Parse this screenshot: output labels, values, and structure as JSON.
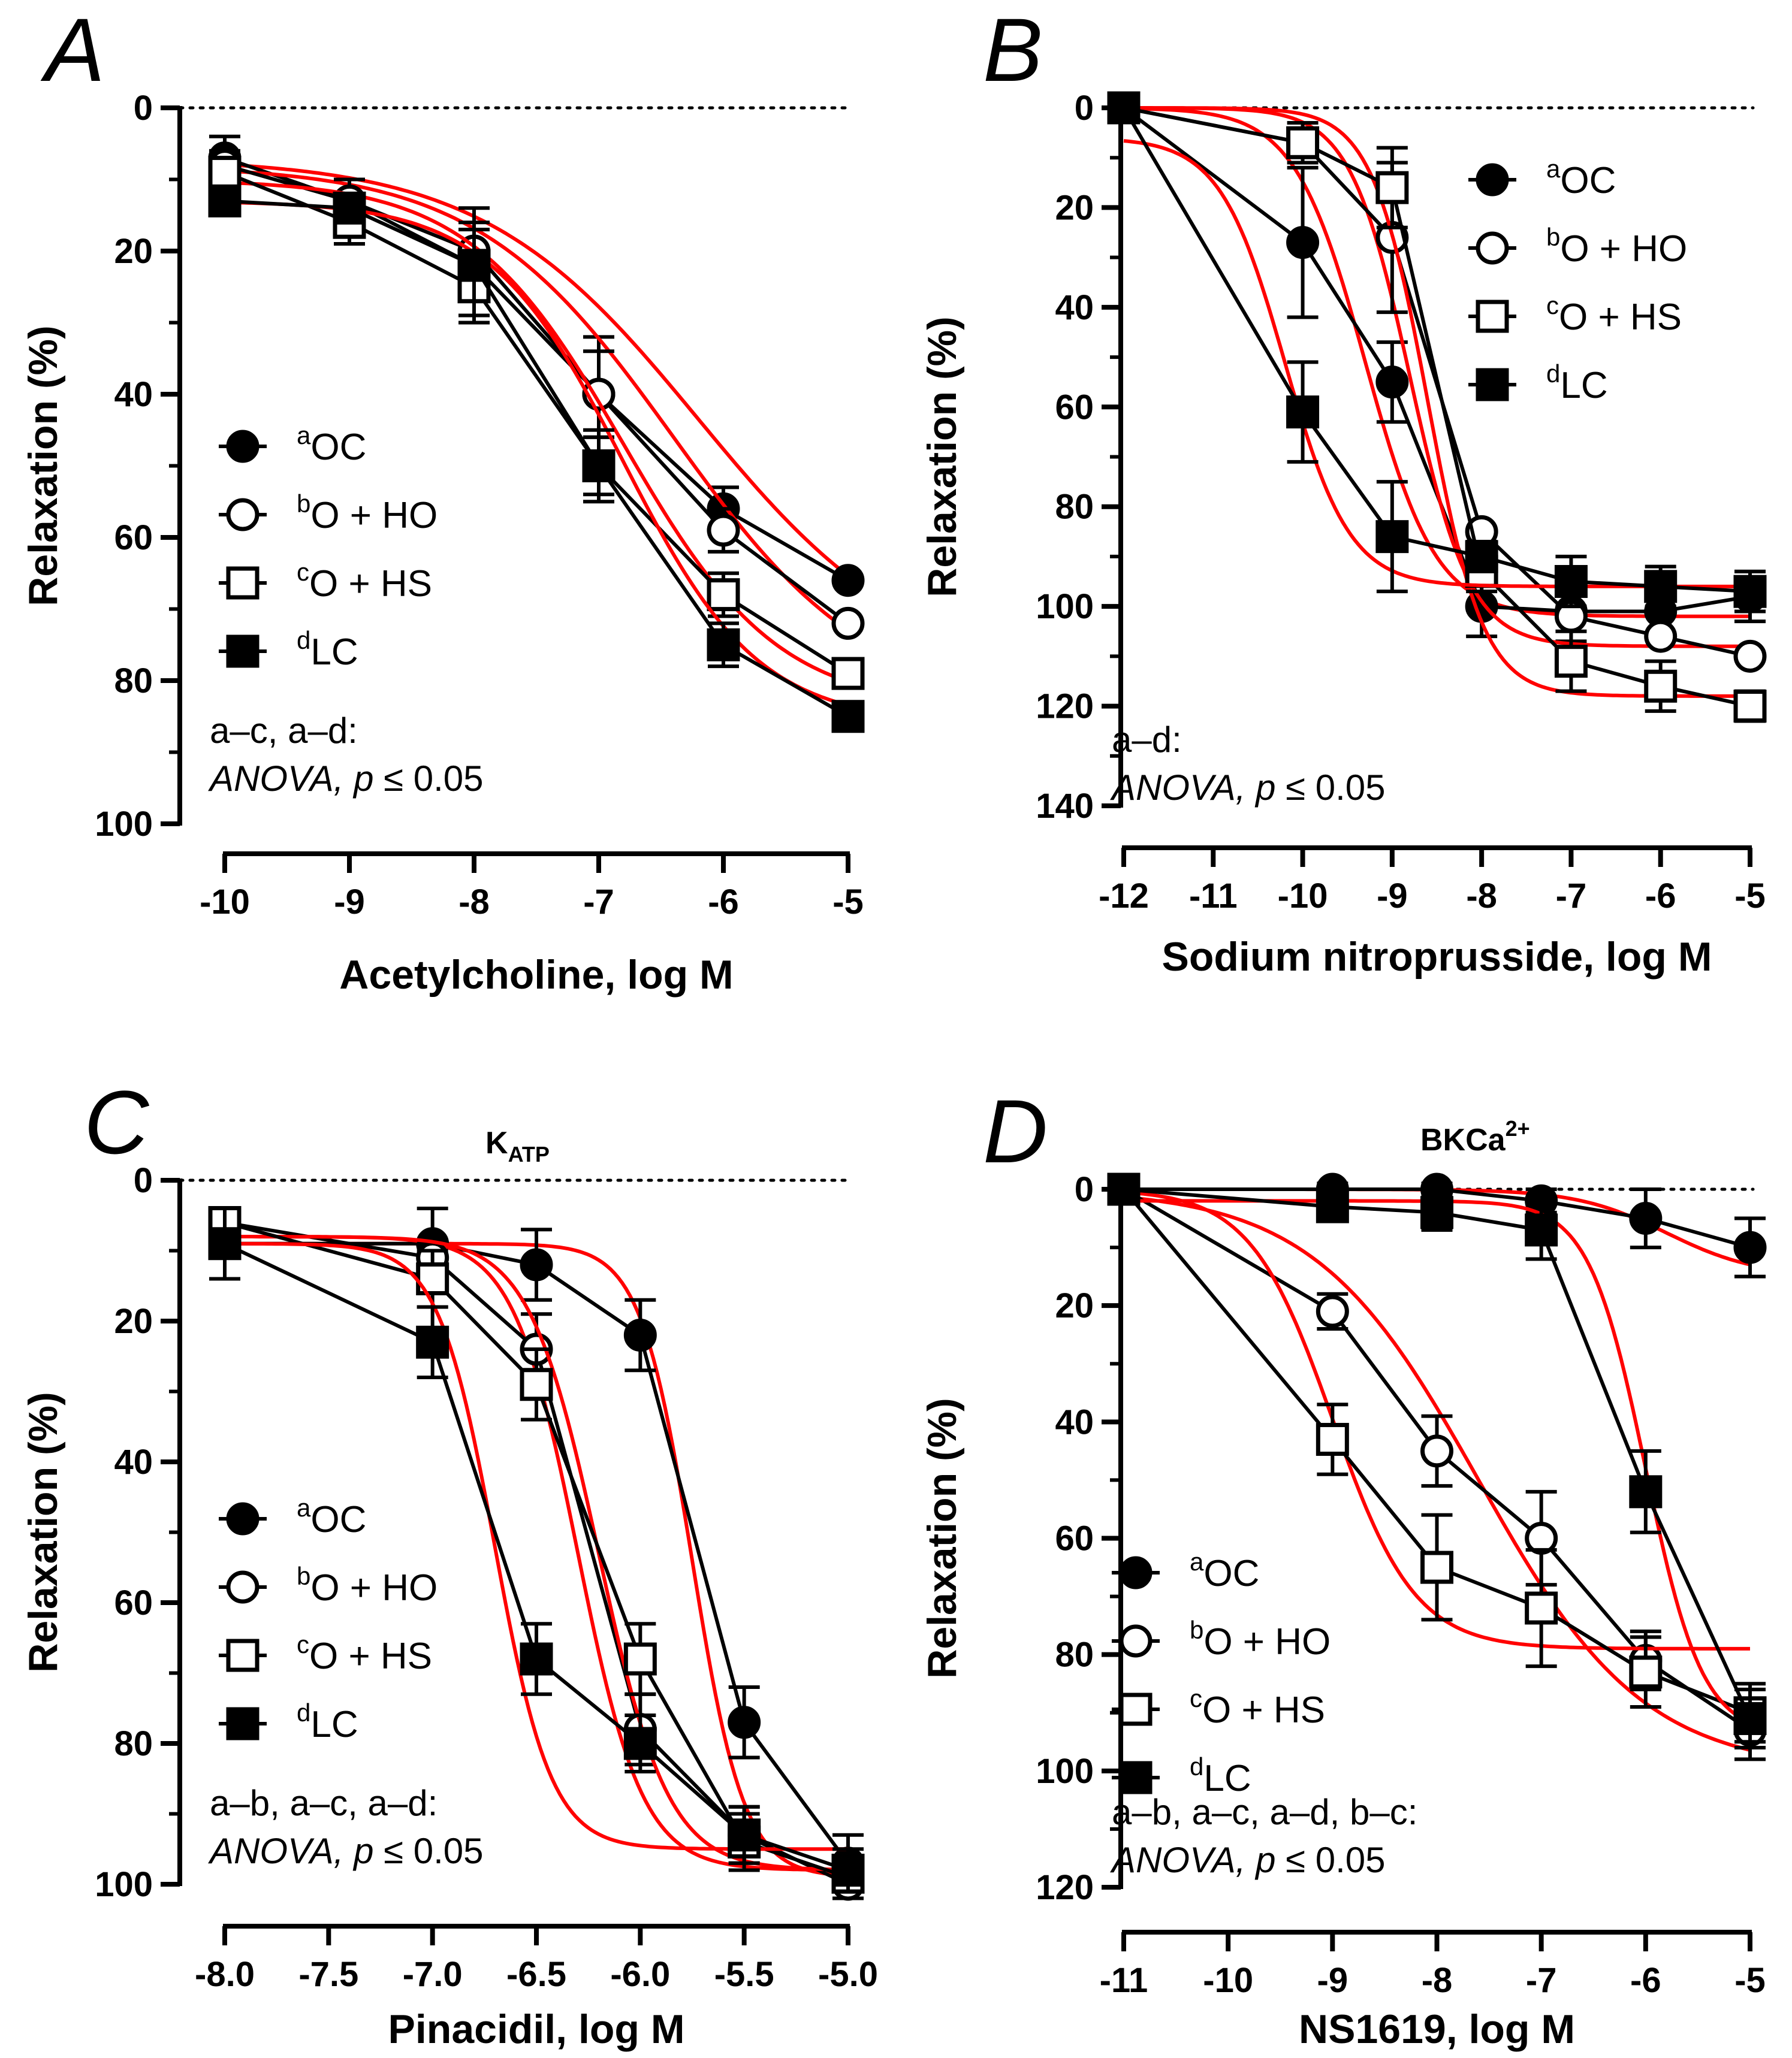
{
  "chart_data": [
    {
      "panel": "A",
      "type": "line",
      "title": "",
      "xlabel": "Acetylcholine, log M",
      "ylabel": "Relaxation (%)",
      "xlim": [
        -10,
        -5
      ],
      "ylim": [
        0,
        100
      ],
      "y_inverted": true,
      "xticks": [
        "-10",
        "-9",
        "-8",
        "-7",
        "-6",
        "-5"
      ],
      "yticks": [
        "0",
        "20",
        "40",
        "60",
        "80",
        "100"
      ],
      "x": [
        -10,
        -9,
        -8,
        -7,
        -6,
        -5
      ],
      "series": [
        {
          "name": "OC",
          "sup": "a",
          "marker": "filled-circle",
          "values": [
            7,
            13,
            22,
            40,
            56,
            66
          ],
          "errors": [
            3,
            3,
            8,
            8,
            3,
            0
          ],
          "fit": {
            "top": 7,
            "bottom": 80,
            "ec50": -6.2,
            "hill": 0.5
          }
        },
        {
          "name": "O + HO",
          "sup": "b",
          "marker": "open-circle",
          "values": [
            8,
            13,
            20,
            40,
            59,
            72
          ],
          "errors": [
            2,
            3,
            4,
            6,
            3,
            0
          ],
          "fit": {
            "top": 8,
            "bottom": 84,
            "ec50": -6.4,
            "hill": 0.55
          }
        },
        {
          "name": "O + HS",
          "sup": "c",
          "marker": "open-square",
          "values": [
            9,
            16,
            25,
            50,
            68,
            79
          ],
          "errors": [
            2,
            3,
            4,
            4,
            3,
            0
          ],
          "fit": {
            "top": 10,
            "bottom": 84,
            "ec50": -6.8,
            "hill": 0.7
          }
        },
        {
          "name": "LC",
          "sup": "d",
          "marker": "filled-square",
          "values": [
            13,
            14,
            22,
            50,
            75,
            85
          ],
          "errors": [
            2,
            2,
            5,
            5,
            3,
            0
          ],
          "fit": {
            "top": 13,
            "bottom": 86,
            "ec50": -6.8,
            "hill": 0.8
          }
        }
      ],
      "legend": "center-left",
      "stat_label": "a–c, a–d:",
      "stat_test": "ANOVA,",
      "stat_p": "p",
      "stat_value": "≤ 0.05",
      "channel": ""
    },
    {
      "panel": "B",
      "type": "line",
      "title": "",
      "xlabel": "Sodium nitroprusside, log M",
      "ylabel": "Relaxation (%)",
      "xlim": [
        -12,
        -5
      ],
      "ylim": [
        0,
        140
      ],
      "y_inverted": true,
      "xticks": [
        "-12",
        "-11",
        "-10",
        "-9",
        "-8",
        "-7",
        "-6",
        "-5"
      ],
      "yticks": [
        "0",
        "20",
        "40",
        "60",
        "80",
        "100",
        "120",
        "140"
      ],
      "x": [
        -12,
        -10,
        -9,
        -8,
        -7,
        -6,
        -5
      ],
      "series": [
        {
          "name": "OC",
          "sup": "a",
          "marker": "filled-circle",
          "values": [
            0,
            27,
            55,
            100,
            101,
            101,
            98
          ],
          "errors": [
            0,
            15,
            8,
            6,
            6,
            5,
            5
          ],
          "fit": {
            "top": 0,
            "bottom": 102,
            "ec50": -9.3,
            "hill": 1.1
          }
        },
        {
          "name": "O + HO",
          "sup": "b",
          "marker": "open-circle",
          "values": [
            0,
            7,
            26,
            85,
            102,
            106,
            110
          ],
          "errors": [
            0,
            4,
            15,
            0,
            0,
            0,
            0
          ],
          "fit": {
            "top": 0,
            "bottom": 108,
            "ec50": -8.8,
            "hill": 1.3
          }
        },
        {
          "name": "O + HS",
          "sup": "c",
          "marker": "open-square",
          "values": [
            0,
            7,
            16,
            93,
            111,
            116,
            120
          ],
          "errors": [
            0,
            0,
            8,
            4,
            6,
            5,
            3
          ],
          "fit": {
            "top": 0,
            "bottom": 118,
            "ec50": -8.6,
            "hill": 1.4
          }
        },
        {
          "name": "LC",
          "sup": "d",
          "marker": "filled-square",
          "values": [
            0,
            61,
            86,
            90,
            95,
            96,
            97
          ],
          "errors": [
            0,
            10,
            11,
            3,
            5,
            4,
            4
          ],
          "fit": {
            "top": 6,
            "bottom": 96,
            "ec50": -10.2,
            "hill": 1.2
          }
        }
      ],
      "legend": "top-right",
      "stat_label": "a–d:",
      "stat_test": "ANOVA,",
      "stat_p": "p",
      "stat_value": "≤ 0.05",
      "channel": ""
    },
    {
      "panel": "C",
      "type": "line",
      "title": "KATP",
      "xlabel": "Pinacidil, log M",
      "ylabel": "Relaxation (%)",
      "xlim": [
        -8.0,
        -5.0
      ],
      "ylim": [
        0,
        100
      ],
      "y_inverted": true,
      "xticks": [
        "-8.0",
        "-7.5",
        "-7.0",
        "-6.5",
        "-6.0",
        "-5.5",
        "-5.0"
      ],
      "yticks": [
        "0",
        "20",
        "40",
        "60",
        "80",
        "100"
      ],
      "x": [
        -8.0,
        -7.0,
        -6.5,
        -6.0,
        -5.5,
        -5.0
      ],
      "series": [
        {
          "name": "OC",
          "sup": "a",
          "marker": "filled-circle",
          "values": [
            9,
            9,
            12,
            22,
            77,
            97
          ],
          "errors": [
            5,
            5,
            5,
            5,
            5,
            4
          ],
          "fit": {
            "top": 9,
            "bottom": 99,
            "ec50": -5.75,
            "hill": 3.5
          }
        },
        {
          "name": "O + HO",
          "sup": "b",
          "marker": "open-circle",
          "values": [
            6,
            11,
            24,
            78,
            93,
            100
          ],
          "errors": [
            2,
            2,
            5,
            5,
            4,
            2
          ],
          "fit": {
            "top": 8,
            "bottom": 98,
            "ec50": -6.3,
            "hill": 2.8
          }
        },
        {
          "name": "O + HS",
          "sup": "c",
          "marker": "open-square",
          "values": [
            6,
            14,
            29,
            68,
            94,
            99
          ],
          "errors": [
            2,
            4,
            5,
            5,
            4,
            2
          ],
          "fit": {
            "top": 8,
            "bottom": 98,
            "ec50": -6.2,
            "hill": 2.6
          }
        },
        {
          "name": "LC",
          "sup": "d",
          "marker": "filled-square",
          "values": [
            9,
            23,
            68,
            80,
            93,
            98
          ],
          "errors": [
            5,
            5,
            5,
            4,
            4,
            3
          ],
          "fit": {
            "top": 9,
            "bottom": 95,
            "ec50": -6.7,
            "hill": 3.2
          }
        }
      ],
      "legend": "center-left",
      "stat_label": "a–b, a–c, a–d:",
      "stat_test": "ANOVA,",
      "stat_p": "p",
      "stat_value": "≤ 0.05",
      "channel": "K",
      "channel_sub": "ATP"
    },
    {
      "panel": "D",
      "type": "line",
      "title": "BKCa2+",
      "xlabel": "NS1619, log M",
      "ylabel": "Relaxation (%)",
      "xlim": [
        -11,
        -5
      ],
      "ylim": [
        0,
        120
      ],
      "y_inverted": true,
      "xticks": [
        "-11",
        "-10",
        "-9",
        "-8",
        "-7",
        "-6",
        "-5"
      ],
      "yticks": [
        "0",
        "20",
        "40",
        "60",
        "80",
        "100",
        "120"
      ],
      "x": [
        -11,
        -9,
        -8,
        -7,
        -6,
        -5
      ],
      "series": [
        {
          "name": "OC",
          "sup": "a",
          "marker": "filled-circle",
          "values": [
            0,
            0,
            0,
            2,
            5,
            10
          ],
          "errors": [
            0,
            1,
            1,
            2,
            5,
            5
          ],
          "fit": {
            "top": 0,
            "bottom": 15,
            "ec50": -5.8,
            "hill": 1.0
          }
        },
        {
          "name": "O + HO",
          "sup": "b",
          "marker": "open-circle",
          "values": [
            0,
            21,
            45,
            60,
            81,
            93
          ],
          "errors": [
            0,
            3,
            6,
            8,
            5,
            5
          ],
          "fit": {
            "top": 0,
            "bottom": 100,
            "ec50": -7.6,
            "hill": 0.55
          }
        },
        {
          "name": "O + HS",
          "sup": "c",
          "marker": "open-square",
          "values": [
            0,
            43,
            65,
            72,
            83,
            90
          ],
          "errors": [
            0,
            6,
            9,
            10,
            6,
            5
          ],
          "fit": {
            "top": 0,
            "bottom": 79,
            "ec50": -9.0,
            "hill": 1.1
          }
        },
        {
          "name": "LC",
          "sup": "d",
          "marker": "filled-square",
          "values": [
            0,
            3,
            4,
            7,
            52,
            91
          ],
          "errors": [
            0,
            2,
            3,
            5,
            7,
            5
          ],
          "fit": {
            "top": 2,
            "bottom": 94,
            "ec50": -6.0,
            "hill": 1.6
          }
        }
      ],
      "legend": "bottom-left",
      "stat_label": "a–b, a–c, a–d, b–c:",
      "stat_test": "ANOVA,",
      "stat_p": "p",
      "stat_value": "≤ 0.05",
      "channel": "BKCa",
      "channel_sup": "2+"
    }
  ],
  "colors": {
    "data": "#000000",
    "fit": "#ff0000",
    "background": "#ffffff"
  }
}
